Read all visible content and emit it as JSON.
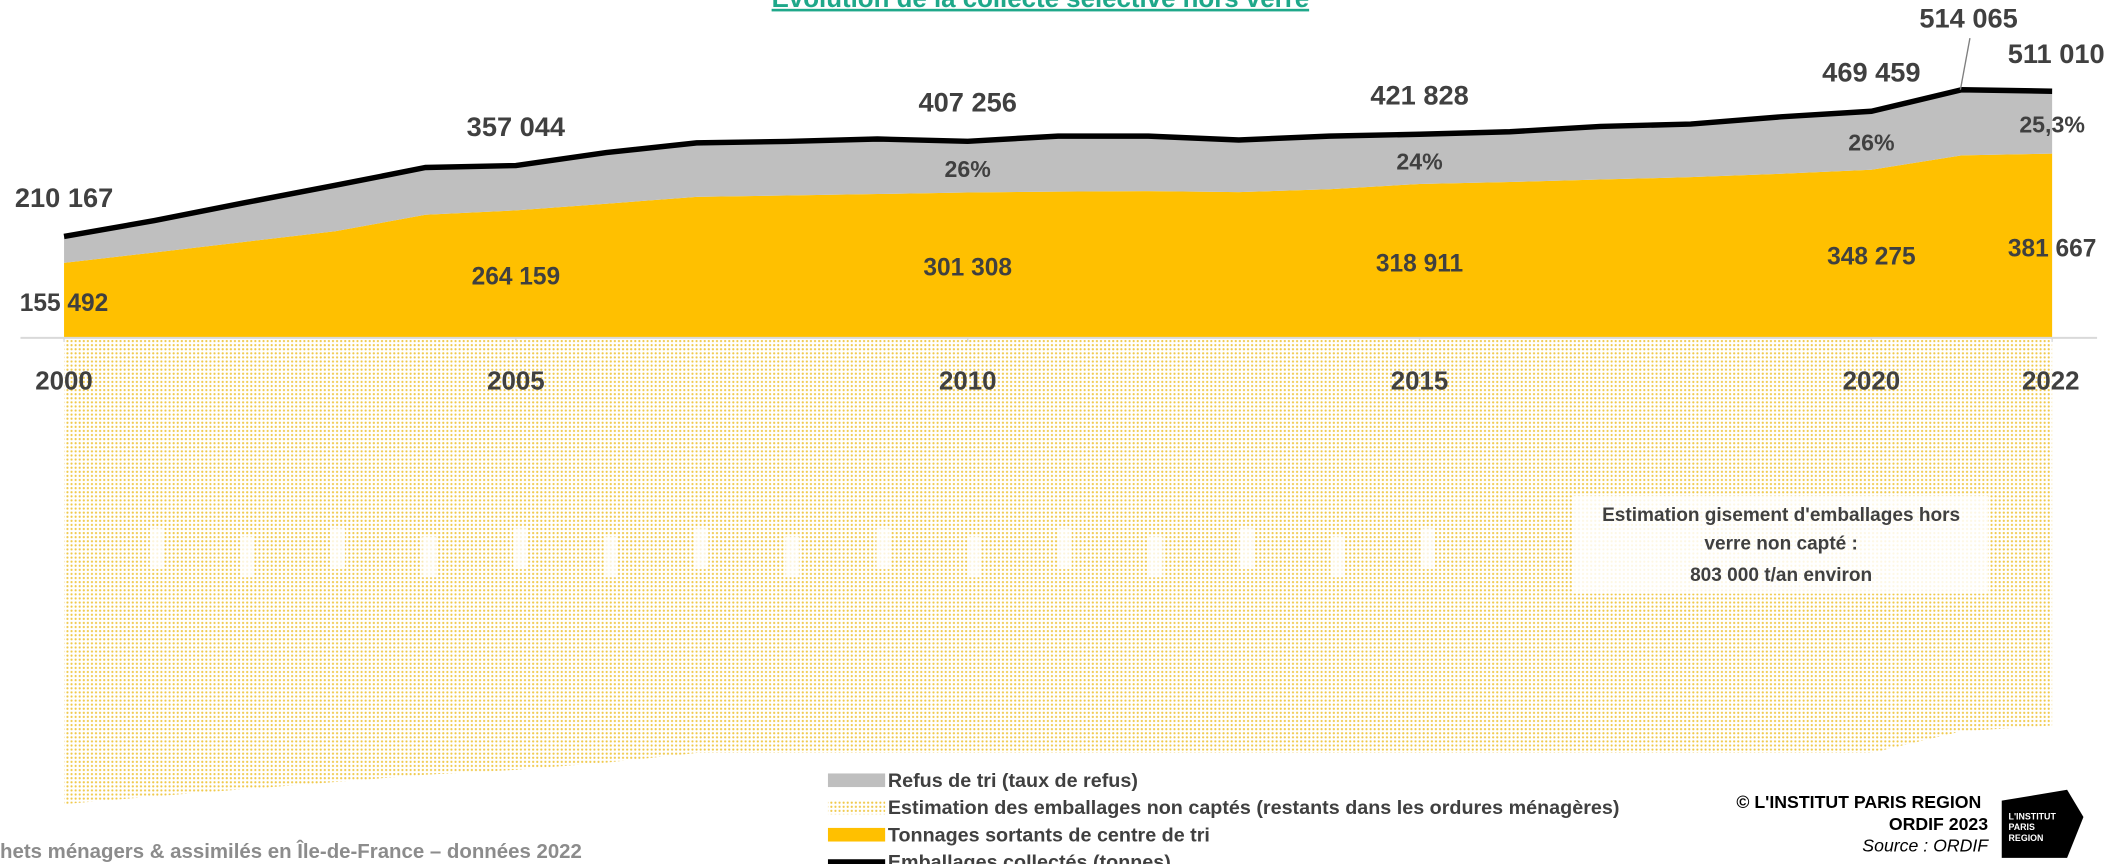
{
  "chart_data": {
    "type": "area",
    "title": "Évolution de la collecte sélective hors verre",
    "x": [
      2000,
      2001,
      2002,
      2003,
      2004,
      2005,
      2006,
      2007,
      2008,
      2009,
      2010,
      2011,
      2012,
      2013,
      2014,
      2015,
      2016,
      2017,
      2018,
      2019,
      2020,
      2021,
      2022
    ],
    "xlim": [
      2000,
      2022
    ],
    "xticks": [
      2000,
      2005,
      2010,
      2015,
      2020,
      2022
    ],
    "ylim": [
      -1090000,
      700000
    ],
    "series": [
      {
        "name": "Tonnages sortants de centre de tri",
        "color": "#ffc000",
        "values": [
          155492,
          177000,
          199000,
          221000,
          255000,
          264159,
          278000,
          292000,
          295000,
          298000,
          301308,
          303000,
          304000,
          302000,
          308000,
          318911,
          323000,
          328000,
          333000,
          340000,
          348275,
          378000,
          381667
        ],
        "value_labels": [
          "155 492",
          null,
          null,
          null,
          null,
          "264 159",
          null,
          null,
          null,
          null,
          "301 308",
          null,
          null,
          null,
          null,
          "318 911",
          null,
          null,
          null,
          null,
          "348 275",
          null,
          "381 667"
        ]
      },
      {
        "name": "Refus de tri (taux de refus)",
        "color": "#bfbfbf",
        "values": [
          54675,
          66000,
          81000,
          95000,
          98000,
          92885,
          106000,
          112000,
          112000,
          114000,
          105948,
          115000,
          114000,
          108000,
          110000,
          102917,
          104000,
          110000,
          110000,
          118000,
          121184,
          136065,
          129343
        ]
      },
      {
        "name": "Estimation des emballages non captés (restants dans les ordures ménagères)",
        "color": "#f5d66b",
        "values": [
          -966000,
          -950000,
          -935000,
          -920000,
          -905000,
          -895000,
          -880000,
          -860000,
          -860000,
          -860000,
          -860000,
          -860000,
          -860000,
          -860000,
          -860000,
          -860000,
          -860000,
          -860000,
          -860000,
          -860000,
          -860000,
          -815000,
          -803000
        ]
      },
      {
        "name": "Emballages collectés (tonnes)",
        "color": "#000000",
        "type": "line",
        "values": [
          210167,
          243000,
          280000,
          316000,
          353000,
          357044,
          384000,
          404000,
          407000,
          412000,
          407256,
          418000,
          418000,
          410000,
          418000,
          421828,
          427000,
          438000,
          443000,
          458000,
          469459,
          514065,
          511010
        ],
        "value_labels": [
          "210 167",
          null,
          null,
          null,
          null,
          "357 044",
          null,
          null,
          null,
          null,
          "407 256",
          null,
          null,
          null,
          null,
          "421 828",
          null,
          null,
          null,
          null,
          "469 459",
          "514 065",
          "511 010"
        ]
      }
    ],
    "refusal_rates": {
      "x": [
        2010,
        2015,
        2020,
        2022
      ],
      "values": [
        26,
        24,
        26,
        25.3
      ],
      "labels": [
        "26%",
        "24%",
        "26%",
        "25,3%"
      ]
    },
    "annotation": [
      "Estimation gisement d'emballages hors",
      "verre non capté :",
      "803 000 t/an environ"
    ],
    "footer": "hets ménagers & assimilés en Île-de-France – données 2022",
    "credit": [
      "© L'INSTITUT PARIS REGION",
      "ORDIF 2023",
      "Source : ORDIF"
    ],
    "logo": [
      "L'INSTITUT",
      "PARIS",
      "REGION"
    ]
  }
}
